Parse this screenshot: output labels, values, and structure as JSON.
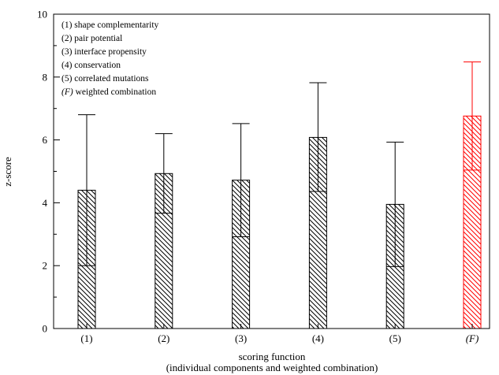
{
  "chart_data": {
    "type": "bar",
    "categories": [
      "(1)",
      "(2)",
      "(3)",
      "(4)",
      "(5)",
      "(F)"
    ],
    "italic_categories": [
      "(F)"
    ],
    "values": [
      4.4,
      4.93,
      4.72,
      6.08,
      3.95,
      6.76
    ],
    "error_low": [
      2.0,
      3.67,
      2.92,
      4.36,
      1.97,
      5.04
    ],
    "error_high": [
      6.8,
      6.2,
      6.52,
      7.82,
      5.93,
      8.48
    ],
    "bar_colors": [
      "#000000",
      "#000000",
      "#000000",
      "#000000",
      "#000000",
      "#ff0000"
    ],
    "fill": "diagonal-hatch",
    "ylim": [
      0,
      10
    ],
    "yticks": [
      0,
      2,
      4,
      6,
      8,
      10
    ],
    "xlabel": "scoring function",
    "xlabel_sub": "(individual components and weighted combination)",
    "ylabel": "z-score",
    "grid": false,
    "legend_position": "top-left",
    "legend": [
      {
        "text": "(1) shape complementarity"
      },
      {
        "text": "(2) pair potential"
      },
      {
        "text": "(3) interface propensity"
      },
      {
        "text": "(4) conservation"
      },
      {
        "text": "(5) correlated mutations"
      },
      {
        "prefix": "(F)",
        "text": " weighted combination"
      }
    ]
  }
}
